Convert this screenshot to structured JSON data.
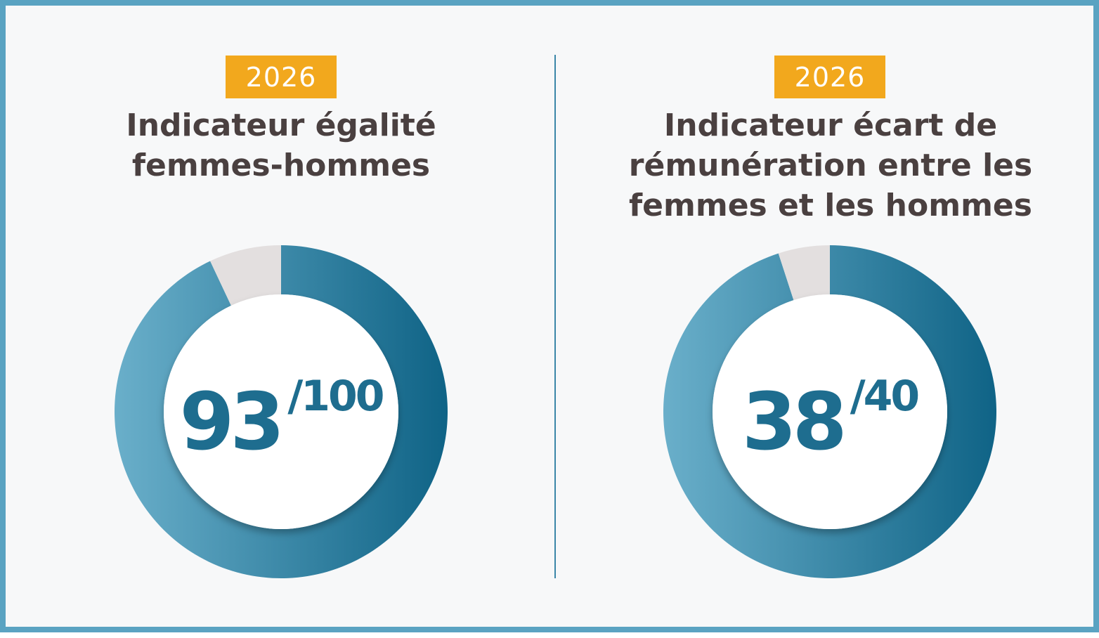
{
  "colors": {
    "border": "#5aa3c2",
    "background": "#f7f8f9",
    "badge": "#f2a81d",
    "title_text": "#4a4040",
    "ring_dark": "#0f6386",
    "ring_light": "#6aafca",
    "ring_remainder": "#e3dfdf",
    "score_text": "#1e6d8f"
  },
  "panels": [
    {
      "year": "2026",
      "title_lines": [
        "Indicateur égalité",
        "femmes-hommes"
      ],
      "score": "93",
      "max": "/100"
    },
    {
      "year": "2026",
      "title_lines": [
        "Indicateur écart de",
        "rémunération entre les",
        "femmes et les hommes"
      ],
      "score": "38",
      "max": "/40"
    }
  ],
  "chart_data": [
    {
      "type": "pie",
      "style": "donut",
      "values": [
        93,
        7
      ],
      "total": 100
    },
    {
      "type": "pie",
      "style": "donut",
      "values": [
        38,
        2
      ],
      "total": 40
    }
  ]
}
